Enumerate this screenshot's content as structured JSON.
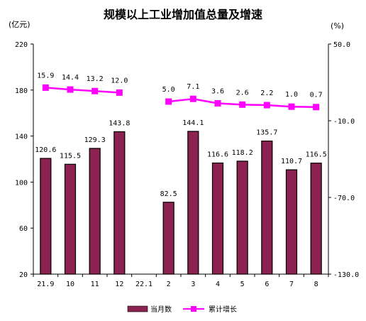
{
  "chart_data": {
    "type": "bar+line",
    "title": "规模以上工业增加值总量及增速",
    "left_axis_unit": "(亿元)",
    "right_axis_unit": "(%)",
    "categories": [
      "21.9",
      "10",
      "11",
      "12",
      "22.1",
      "2",
      "3",
      "4",
      "5",
      "6",
      "7",
      "8"
    ],
    "left_ylim": [
      20,
      220
    ],
    "left_ticks": [
      "220",
      "180",
      "140",
      "100",
      "60",
      "20"
    ],
    "right_ylim": [
      -130,
      50
    ],
    "right_ticks": [
      "50.0",
      "-10.0",
      "-70.0",
      "-130.0"
    ],
    "grid": false,
    "legend_position": "bottom",
    "series": [
      {
        "name": "当月数",
        "type": "bar",
        "axis": "left",
        "color": "#8B2252",
        "values": [
          120.6,
          115.5,
          129.3,
          143.8,
          null,
          82.5,
          144.1,
          116.6,
          118.2,
          135.7,
          110.7,
          116.5
        ],
        "labels": [
          "120.6",
          "115.5",
          "129.3",
          "143.8",
          "",
          "82.5",
          "144.1",
          "116.6",
          "118.2",
          "135.7",
          "110.7",
          "116.5"
        ]
      },
      {
        "name": "累计增长",
        "type": "line",
        "axis": "right",
        "color": "#FF00FF",
        "values": [
          15.9,
          14.4,
          13.2,
          12.0,
          null,
          5.0,
          7.1,
          3.6,
          2.6,
          2.2,
          1.0,
          0.7
        ],
        "labels": [
          "15.9",
          "14.4",
          "13.2",
          "12.0",
          "",
          "5.0",
          "7.1",
          "3.6",
          "2.6",
          "2.2",
          "1.0",
          "0.7"
        ]
      }
    ]
  }
}
